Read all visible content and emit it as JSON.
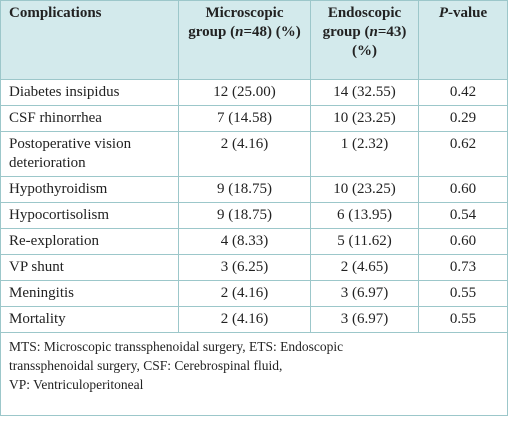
{
  "table": {
    "header": [
      [
        "Complications"
      ],
      [
        "Microscopic group (",
        "n",
        "=48) (%)"
      ],
      [
        "Endoscopic group (",
        "n",
        "=43) (%)"
      ],
      [
        "P",
        "-value"
      ]
    ],
    "rows": [
      [
        "Diabetes insipidus",
        "12 (25.00)",
        "14 (32.55)",
        "0.42"
      ],
      [
        "CSF rhinorrhea",
        "7 (14.58)",
        "10 (23.25)",
        "0.29"
      ],
      [
        "Postoperative vision deterioration",
        "2 (4.16)",
        "1 (2.32)",
        "0.62"
      ],
      [
        "Hypothyroidism",
        "9 (18.75)",
        "10 (23.25)",
        "0.60"
      ],
      [
        "Hypocortisolism",
        "9 (18.75)",
        "6 (13.95)",
        "0.54"
      ],
      [
        "Re-exploration",
        "4 (8.33)",
        "5 (11.62)",
        "0.60"
      ],
      [
        "VP shunt",
        "3 (6.25)",
        "2 (4.65)",
        "0.73"
      ],
      [
        "Meningitis",
        "2 (4.16)",
        "3 (6.97)",
        "0.55"
      ],
      [
        "Mortality",
        "2 (4.16)",
        "3 (6.97)",
        "0.55"
      ]
    ],
    "footnote": [
      "MTS: Microscopic transsphenoidal surgery, ETS: Endoscopic",
      "transsphenoidal surgery, CSF: Cerebrospinal fluid,",
      "VP: Ventriculoperitoneal"
    ]
  }
}
